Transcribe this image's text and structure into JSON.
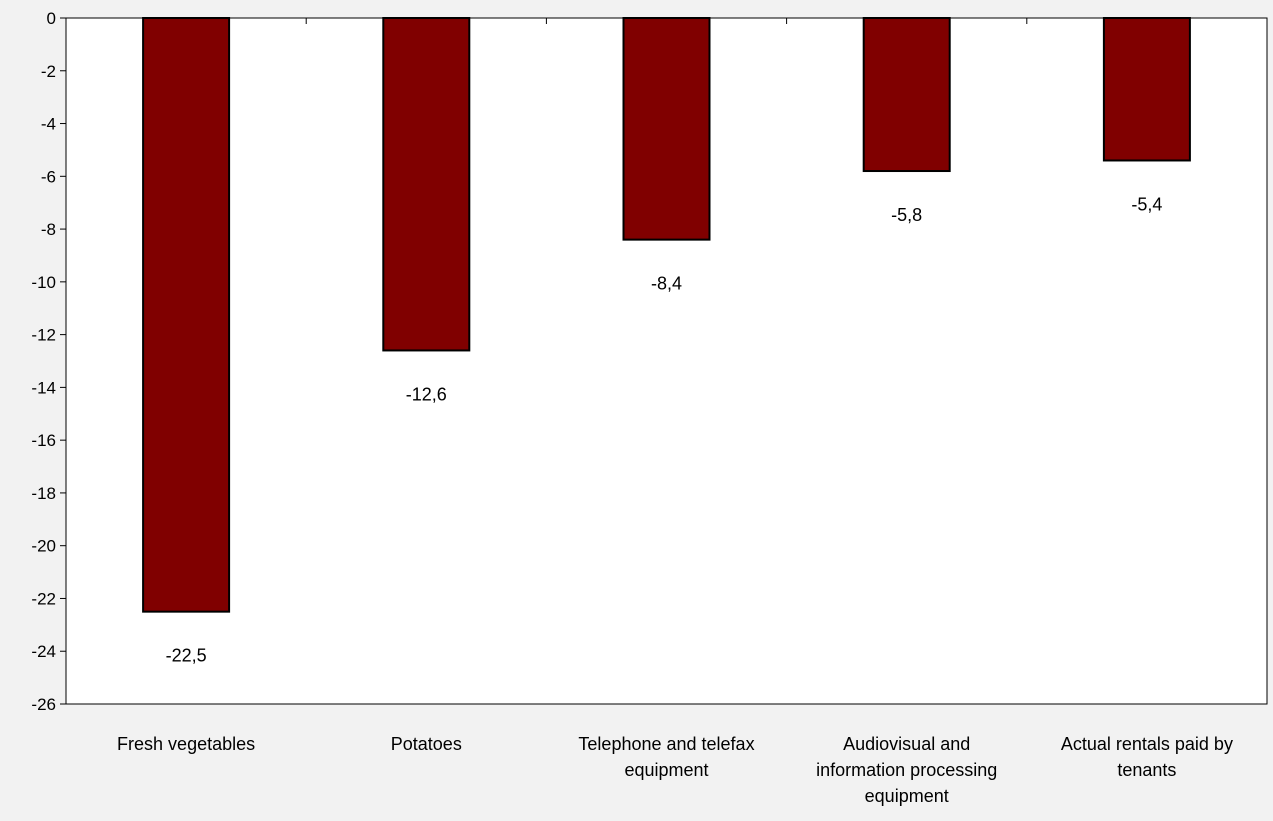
{
  "chart_data": {
    "type": "bar",
    "categories": [
      "Fresh vegetables",
      "Potatoes",
      "Telephone and telefax equipment",
      "Audiovisual and information processing equipment",
      "Actual rentals paid by tenants"
    ],
    "category_label_lines": [
      [
        "Fresh vegetables"
      ],
      [
        "Potatoes"
      ],
      [
        "Telephone and telefax",
        "equipment"
      ],
      [
        "Audiovisual and",
        "information processing",
        "equipment"
      ],
      [
        "Actual rentals paid by",
        "tenants"
      ]
    ],
    "values": [
      -22.5,
      -12.6,
      -8.4,
      -5.8,
      -5.4
    ],
    "data_labels": [
      "-22,5",
      "-12,6",
      "-8,4",
      "-5,8",
      "-5,4"
    ],
    "ylim": [
      -26,
      0
    ],
    "y_ticks": [
      0,
      -2,
      -4,
      -6,
      -8,
      -10,
      -12,
      -14,
      -16,
      -18,
      -20,
      -22,
      -24,
      -26
    ],
    "y_tick_labels": [
      "0",
      "-2",
      "-4",
      "-6",
      "-8",
      "-10",
      "-12",
      "-14",
      "-16",
      "-18",
      "-20",
      "-22",
      "-24",
      "-26"
    ],
    "title": "",
    "xlabel": "",
    "ylabel": "",
    "grid": false,
    "legend": "none",
    "colors": {
      "bar_fill": "#800000",
      "bar_stroke": "#000000",
      "plot_background": "#ffffff",
      "page_background": "#f2f2f2"
    }
  }
}
